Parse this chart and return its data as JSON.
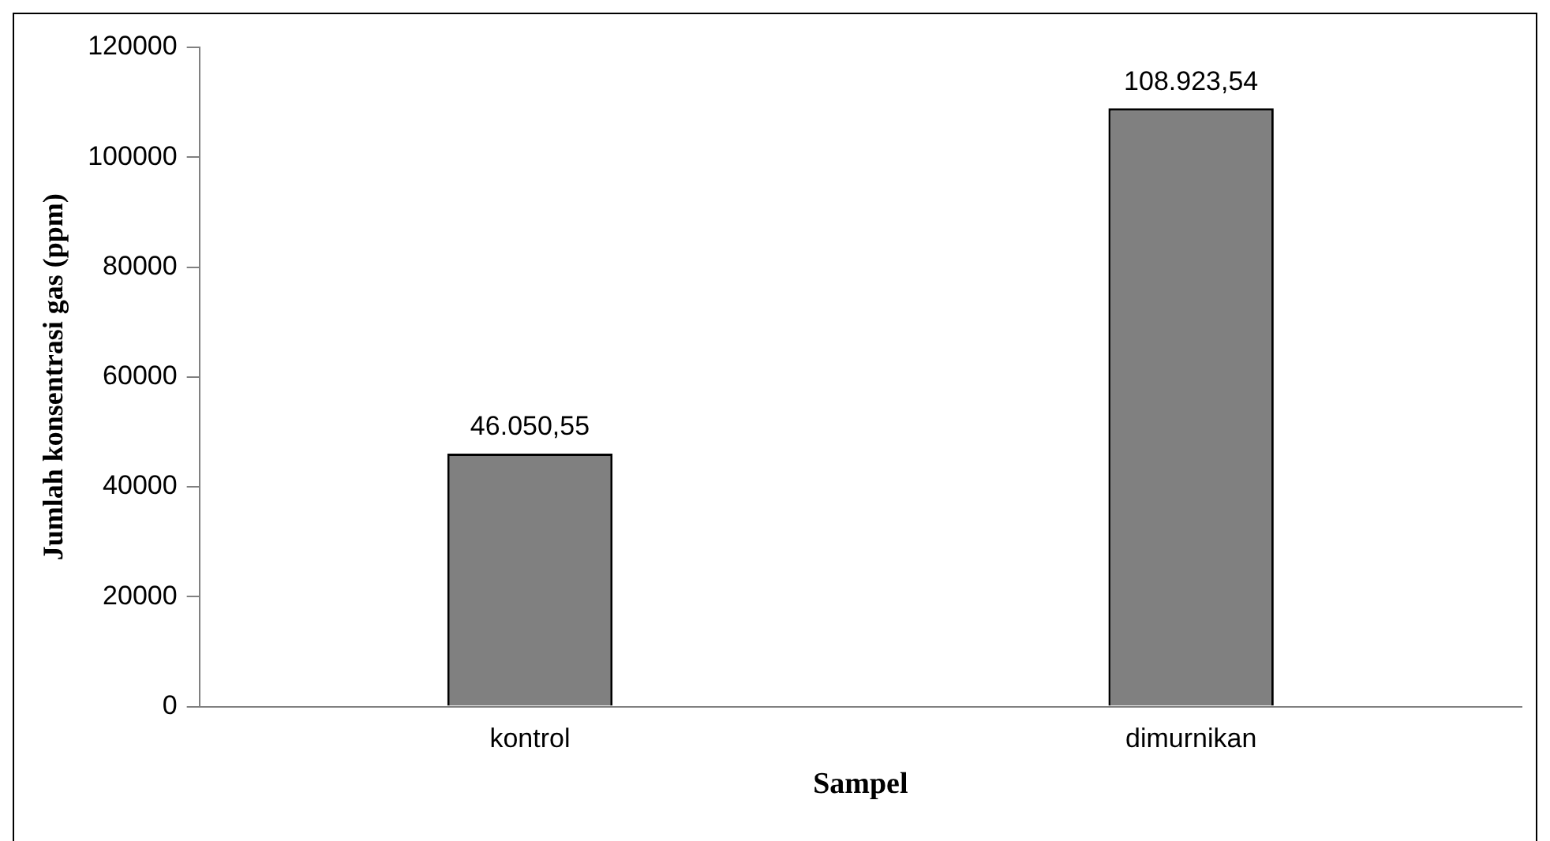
{
  "chart_data": {
    "type": "bar",
    "xlabel": "Sampel",
    "ylabel": "Jumlah konsentrasi gas (ppm)",
    "categories": [
      "kontrol",
      "dimurnikan"
    ],
    "values": [
      46050.55,
      108923.54
    ],
    "value_labels": [
      "46.050,55",
      "108.923,54"
    ],
    "color": "#808080",
    "ylim": [
      0,
      120000
    ],
    "yticks": [
      0,
      20000,
      40000,
      60000,
      80000,
      100000,
      120000
    ],
    "grid": false,
    "legend": false
  }
}
